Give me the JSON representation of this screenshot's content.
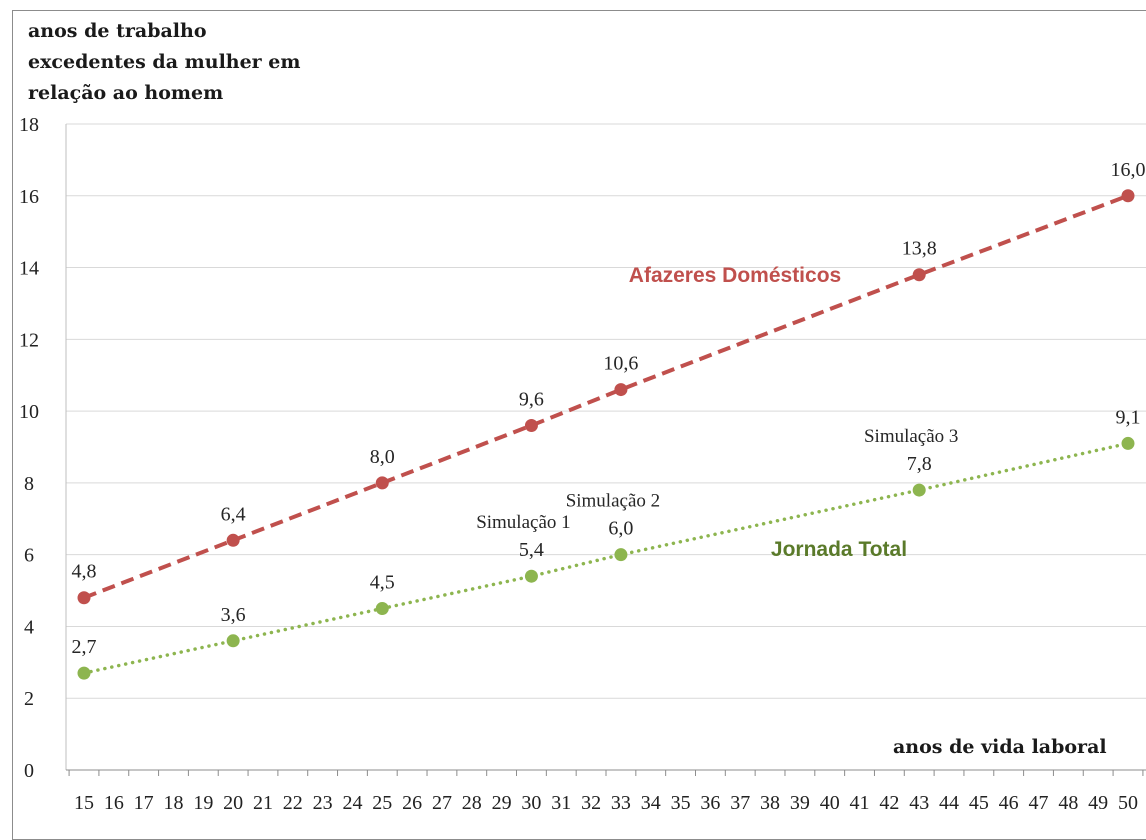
{
  "chart_data": {
    "type": "line",
    "ylabel_lines": [
      "anos  de trabalho",
      "excedentes da mulher em",
      "relação ao homem"
    ],
    "xlabel": "anos de vida laboral",
    "ylim": [
      0,
      18
    ],
    "yticks": [
      0,
      2,
      4,
      6,
      8,
      10,
      12,
      14,
      16,
      18
    ],
    "x_categories": [
      15,
      16,
      17,
      18,
      19,
      20,
      21,
      22,
      23,
      24,
      25,
      26,
      27,
      28,
      29,
      30,
      31,
      32,
      33,
      34,
      35,
      36,
      37,
      38,
      39,
      40,
      41,
      42,
      43,
      44,
      45,
      46,
      47,
      48,
      49,
      50
    ],
    "grid": "horizontal",
    "series": [
      {
        "name": "Afazeres Domésticos",
        "color": "#c0504d",
        "style": "dashed",
        "points": [
          {
            "x": 15,
            "y": 4.8,
            "label": "4,8"
          },
          {
            "x": 20,
            "y": 6.4,
            "label": "6,4"
          },
          {
            "x": 25,
            "y": 8.0,
            "label": "8,0"
          },
          {
            "x": 30,
            "y": 9.6,
            "label": "9,6"
          },
          {
            "x": 33,
            "y": 10.6,
            "label": "10,6"
          },
          {
            "x": 43,
            "y": 13.8,
            "label": "13,8"
          },
          {
            "x": 50,
            "y": 16.0,
            "label": "16,0"
          }
        ]
      },
      {
        "name": "Jornada Total",
        "color": "#8db54f",
        "label_color": "#5a7a2a",
        "style": "dotted",
        "points": [
          {
            "x": 15,
            "y": 2.7,
            "label": "2,7"
          },
          {
            "x": 20,
            "y": 3.6,
            "label": "3,6"
          },
          {
            "x": 25,
            "y": 4.5,
            "label": "4,5"
          },
          {
            "x": 30,
            "y": 5.4,
            "label": "5,4"
          },
          {
            "x": 33,
            "y": 6.0,
            "label": "6,0"
          },
          {
            "x": 43,
            "y": 7.8,
            "label": "7,8"
          },
          {
            "x": 50,
            "y": 9.1,
            "label": "9,1"
          }
        ]
      }
    ],
    "annotations": [
      {
        "text": "Simulação 1",
        "x": 30
      },
      {
        "text": "Simulação 2",
        "x": 33
      },
      {
        "text": "Simulação 3",
        "x": 43
      }
    ]
  }
}
